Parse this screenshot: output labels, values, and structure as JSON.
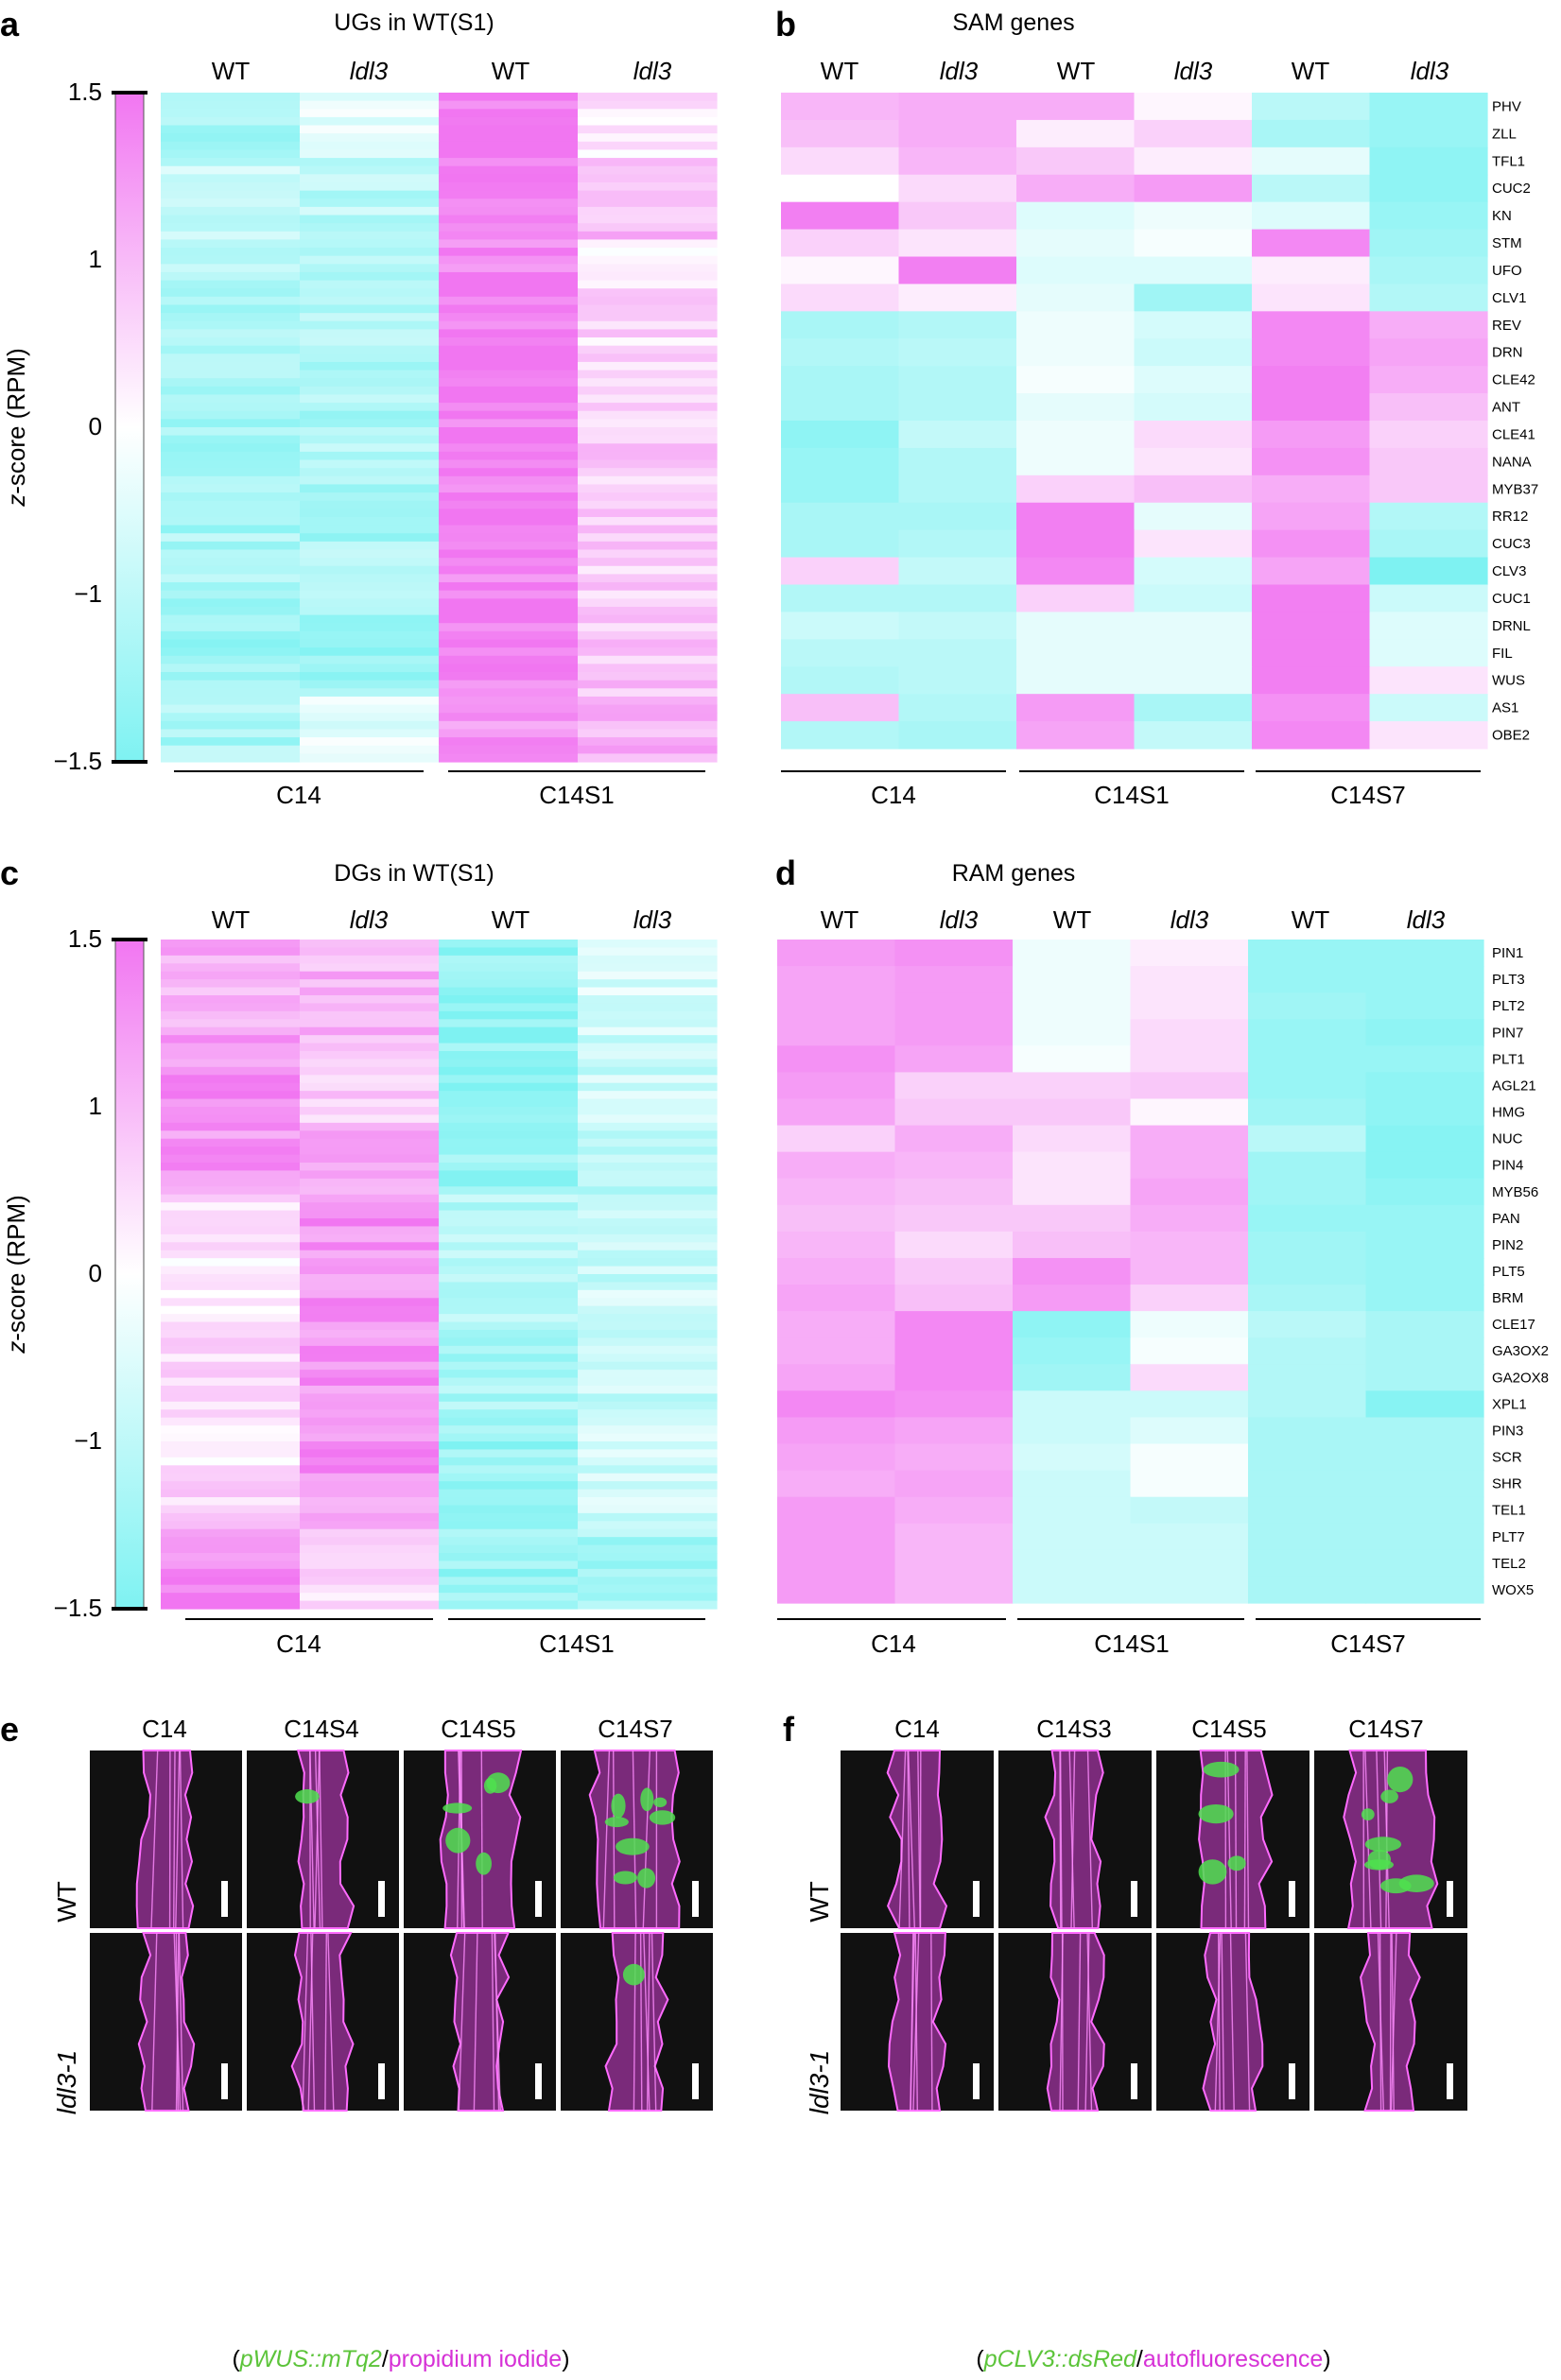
{
  "panel_letters": [
    "a",
    "b",
    "c",
    "d",
    "e",
    "f"
  ],
  "colors": {
    "high": "#f176f1",
    "mid": "#ffffff",
    "low": "#7ef2f2",
    "tissue": "#d13fd1",
    "reporter": "#4fe04f",
    "background": "#111111"
  },
  "chart_data": [
    {
      "id": "a",
      "type": "heatmap",
      "title": "UGs in WT(S1)",
      "columns": [
        "WT",
        "ldl3",
        "WT",
        "ldl3"
      ],
      "italic_columns": [
        1,
        3
      ],
      "groups": [
        "C14",
        "C14S1"
      ],
      "colorbar": {
        "label": "z-score (RPM)",
        "ticks": [
          "1.5",
          "1",
          "0",
          "−1",
          "−1.5"
        ],
        "tick_values": [
          1.5,
          1,
          0,
          -1,
          -1.5
        ],
        "range": [
          -1.5,
          1.5
        ]
      },
      "bands": [
        {
          "rows": 8,
          "mean": [
            -1.0,
            -0.3,
            1.4,
            0.2
          ]
        },
        {
          "rows": 10,
          "mean": [
            -0.7,
            -0.8,
            1.3,
            0.8
          ]
        },
        {
          "rows": 6,
          "mean": [
            -0.9,
            -1.0,
            1.4,
            0.1
          ]
        },
        {
          "rows": 16,
          "mean": [
            -0.9,
            -0.9,
            1.5,
            0.4
          ]
        },
        {
          "rows": 10,
          "mean": [
            -1.0,
            -0.9,
            1.4,
            0.5
          ]
        },
        {
          "rows": 12,
          "mean": [
            -1.0,
            -1.0,
            1.4,
            0.5
          ]
        },
        {
          "rows": 12,
          "mean": [
            -1.1,
            -1.1,
            1.4,
            0.6
          ]
        },
        {
          "rows": 8,
          "mean": [
            -1.0,
            -0.4,
            1.2,
            0.9
          ]
        }
      ]
    },
    {
      "id": "b",
      "type": "heatmap",
      "title": "SAM genes",
      "columns": [
        "WT",
        "ldl3",
        "WT",
        "ldl3",
        "WT",
        "ldl3"
      ],
      "italic_columns": [
        1,
        3,
        5
      ],
      "groups": [
        "C14",
        "C14S1",
        "C14S7"
      ],
      "rows": [
        "PHV",
        "ZLL",
        "TFL1",
        "CUC2",
        "KN",
        "STM",
        "UFO",
        "CLV1",
        "REV",
        "DRN",
        "CLE42",
        "ANT",
        "CLE41",
        "NANA",
        "MYB37",
        "RR12",
        "CUC3",
        "CLV3",
        "CUC1",
        "DRNL",
        "FIL",
        "WUS",
        "AS1",
        "OBE2"
      ],
      "values": [
        [
          0.8,
          0.9,
          0.9,
          0.1,
          -0.8,
          -1.2
        ],
        [
          0.7,
          0.9,
          0.2,
          0.5,
          -1.0,
          -1.2
        ],
        [
          0.4,
          0.8,
          0.6,
          0.2,
          -0.3,
          -1.3
        ],
        [
          0.0,
          0.4,
          0.9,
          1.1,
          -0.8,
          -1.3
        ],
        [
          1.4,
          0.6,
          -0.4,
          -0.2,
          -0.4,
          -1.2
        ],
        [
          0.5,
          0.3,
          -0.3,
          -0.1,
          1.3,
          -1.1
        ],
        [
          0.1,
          1.4,
          -0.4,
          -0.4,
          0.2,
          -1.0
        ],
        [
          0.4,
          0.2,
          -0.3,
          -1.1,
          0.3,
          -0.9
        ],
        [
          -1.0,
          -0.9,
          -0.2,
          -0.5,
          1.3,
          0.9
        ],
        [
          -0.9,
          -0.8,
          -0.2,
          -0.6,
          1.3,
          1.0
        ],
        [
          -1.0,
          -0.9,
          -0.1,
          -0.4,
          1.4,
          0.9
        ],
        [
          -1.0,
          -0.9,
          -0.3,
          -0.5,
          1.4,
          0.7
        ],
        [
          -1.3,
          -0.7,
          -0.2,
          0.4,
          1.1,
          0.5
        ],
        [
          -1.2,
          -0.9,
          -0.2,
          0.3,
          1.2,
          0.6
        ],
        [
          -1.2,
          -0.9,
          0.5,
          0.7,
          0.9,
          0.6
        ],
        [
          -1.0,
          -1.0,
          1.4,
          -0.3,
          1.0,
          -0.9
        ],
        [
          -1.0,
          -0.9,
          1.4,
          0.3,
          1.2,
          -1.0
        ],
        [
          0.5,
          -0.7,
          1.3,
          -0.5,
          1.0,
          -1.5
        ],
        [
          -0.9,
          -0.9,
          0.5,
          -0.6,
          1.4,
          -0.6
        ],
        [
          -0.6,
          -0.7,
          -0.3,
          -0.3,
          1.4,
          -0.4
        ],
        [
          -0.8,
          -0.8,
          -0.3,
          -0.3,
          1.4,
          -0.4
        ],
        [
          -0.9,
          -0.8,
          -0.3,
          -0.3,
          1.4,
          0.3
        ],
        [
          0.7,
          -0.9,
          1.1,
          -1.0,
          1.2,
          -0.6
        ],
        [
          -0.9,
          -1.0,
          1.0,
          -0.7,
          1.3,
          0.3
        ]
      ]
    },
    {
      "id": "c",
      "type": "heatmap",
      "title": "DGs in WT(S1)",
      "columns": [
        "WT",
        "ldl3",
        "WT",
        "ldl3"
      ],
      "italic_columns": [
        1,
        3
      ],
      "groups": [
        "C14",
        "C14S1"
      ],
      "colorbar": {
        "label": "z-score (RPM)",
        "ticks": [
          "1.5",
          "1",
          "0",
          "−1",
          "−1.5"
        ],
        "tick_values": [
          1.5,
          1,
          0,
          -1,
          -1.5
        ],
        "range": [
          -1.5,
          1.5
        ]
      },
      "bands": [
        {
          "rows": 12,
          "mean": [
            0.9,
            0.8,
            -1.3,
            -0.4
          ]
        },
        {
          "rows": 12,
          "mean": [
            1.2,
            0.6,
            -1.2,
            -0.6
          ]
        },
        {
          "rows": 8,
          "mean": [
            1.1,
            1.1,
            -1.2,
            -0.9
          ]
        },
        {
          "rows": 16,
          "mean": [
            0.3,
            1.2,
            -0.9,
            -0.6
          ]
        },
        {
          "rows": 12,
          "mean": [
            0.4,
            1.2,
            -1.0,
            -0.7
          ]
        },
        {
          "rows": 8,
          "mean": [
            0.2,
            1.2,
            -1.2,
            -0.5
          ]
        },
        {
          "rows": 6,
          "mean": [
            0.4,
            0.9,
            -1.3,
            -0.6
          ]
        },
        {
          "rows": 10,
          "mean": [
            1.3,
            0.4,
            -1.2,
            -1.0
          ]
        }
      ]
    },
    {
      "id": "d",
      "type": "heatmap",
      "title": "RAM genes",
      "columns": [
        "WT",
        "ldl3",
        "WT",
        "ldl3",
        "WT",
        "ldl3"
      ],
      "italic_columns": [
        1,
        3,
        5
      ],
      "groups": [
        "C14",
        "C14S1",
        "C14S7"
      ],
      "rows": [
        "PIN1",
        "PLT3",
        "PLT2",
        "PIN7",
        "PLT1",
        "AGL21",
        "HMG",
        "NUC",
        "PIN4",
        "MYB56",
        "PAN",
        "PIN2",
        "PLT5",
        "BRM",
        "CLE17",
        "GA3OX2",
        "GA2OX8",
        "XPL1",
        "PIN3",
        "SCR",
        "SHR",
        "TEL1",
        "PLT7",
        "TEL2",
        "WOX5"
      ],
      "values": [
        [
          1.1,
          1.2,
          -0.2,
          0.2,
          -1.2,
          -1.2
        ],
        [
          1.0,
          1.1,
          -0.2,
          0.3,
          -1.2,
          -1.2
        ],
        [
          1.0,
          1.1,
          -0.2,
          0.3,
          -1.1,
          -1.2
        ],
        [
          1.0,
          1.1,
          -0.2,
          0.4,
          -1.2,
          -1.3
        ],
        [
          1.2,
          1.0,
          -0.1,
          0.4,
          -1.2,
          -1.2
        ],
        [
          1.1,
          0.5,
          0.5,
          0.6,
          -1.2,
          -1.3
        ],
        [
          1.0,
          0.6,
          0.6,
          0.1,
          -1.1,
          -1.3
        ],
        [
          0.5,
          0.9,
          0.4,
          0.9,
          -0.8,
          -1.4
        ],
        [
          0.9,
          0.8,
          0.3,
          0.9,
          -1.1,
          -1.4
        ],
        [
          0.8,
          0.7,
          0.3,
          1.0,
          -1.1,
          -1.3
        ],
        [
          0.7,
          0.6,
          0.6,
          0.9,
          -1.2,
          -1.2
        ],
        [
          0.8,
          0.4,
          0.7,
          0.8,
          -1.1,
          -1.2
        ],
        [
          0.9,
          0.6,
          1.2,
          0.8,
          -1.1,
          -1.2
        ],
        [
          1.0,
          0.7,
          1.1,
          0.5,
          -1.0,
          -1.2
        ],
        [
          0.9,
          1.3,
          -1.3,
          -0.2,
          -0.8,
          -1.0
        ],
        [
          0.9,
          1.3,
          -1.2,
          -0.1,
          -0.9,
          -1.0
        ],
        [
          1.0,
          1.3,
          -1.1,
          0.4,
          -0.9,
          -1.0
        ],
        [
          1.3,
          1.2,
          -0.6,
          -0.6,
          -0.9,
          -1.4
        ],
        [
          1.1,
          1.0,
          -0.6,
          -0.4,
          -1.0,
          -1.0
        ],
        [
          1.0,
          0.9,
          -0.5,
          -0.1,
          -1.0,
          -1.0
        ],
        [
          0.9,
          1.0,
          -0.6,
          -0.1,
          -1.0,
          -1.0
        ],
        [
          1.1,
          0.9,
          -0.6,
          -0.7,
          -1.0,
          -1.0
        ],
        [
          1.1,
          0.8,
          -0.6,
          -0.6,
          -1.0,
          -1.0
        ],
        [
          1.1,
          0.8,
          -0.6,
          -0.6,
          -1.0,
          -1.0
        ],
        [
          1.1,
          0.8,
          -0.6,
          -0.6,
          -1.0,
          -1.0
        ]
      ]
    }
  ],
  "micro_e": {
    "columns": [
      "C14",
      "C14S4",
      "C14S5",
      "C14S7"
    ],
    "rows": [
      "WT",
      "ldl3-1"
    ],
    "reporter": [
      [
        0,
        0.1,
        0.55,
        0.9
      ],
      [
        0,
        0.05,
        0.02,
        0.08
      ]
    ],
    "caption": {
      "open": "(",
      "reporter": "pWUS::mTq2",
      "sep": "/",
      "stain": "propidium iodide",
      "close": ")"
    }
  },
  "micro_f": {
    "columns": [
      "C14",
      "C14S3",
      "C14S5",
      "C14S7"
    ],
    "rows": [
      "WT",
      "ldl3-1"
    ],
    "reporter": [
      [
        0,
        0.02,
        0.45,
        0.85
      ],
      [
        0,
        0,
        0,
        0
      ]
    ],
    "caption": {
      "open": "(",
      "reporter": "pCLV3::dsRed",
      "sep": "/",
      "stain": "autofluorescence",
      "close": ")"
    }
  }
}
